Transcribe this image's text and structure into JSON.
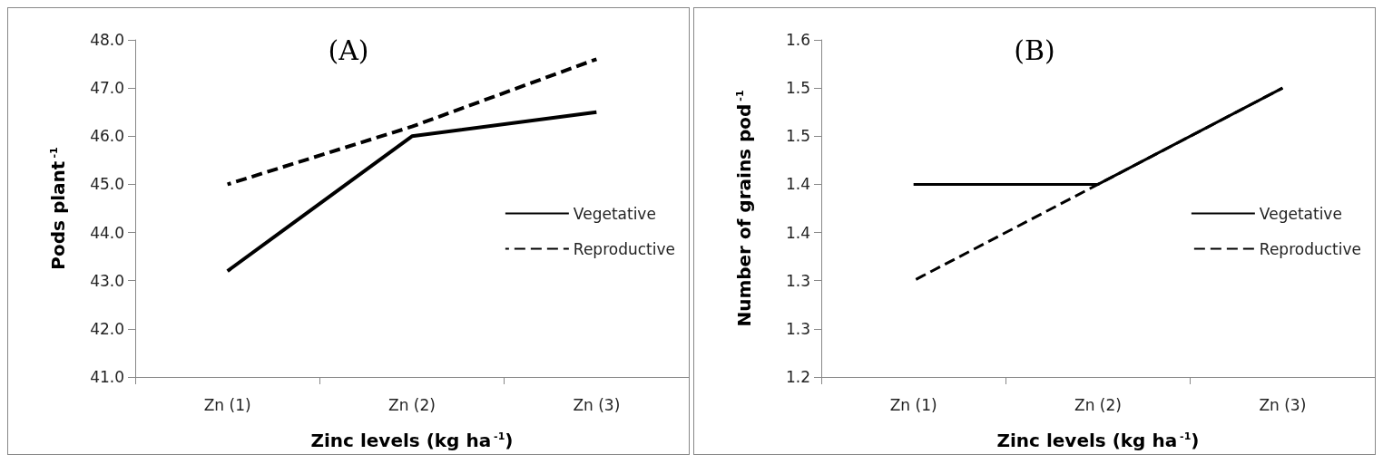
{
  "chart_data": [
    {
      "type": "line",
      "title": "(A)",
      "xlabel": "Zinc levels (kg ha$^{-1}$)",
      "ylabel": "Pods plant$^{-1}$",
      "categories": [
        "Zn (1)",
        "Zn (2)",
        "Zn (3)"
      ],
      "series": [
        {
          "name": "Vegetative",
          "color": "#000000",
          "line_style": "solid",
          "values": [
            43.2,
            46.0,
            46.5
          ]
        },
        {
          "name": "Reproductive",
          "color": "#000000",
          "line_style": "dashed",
          "values": [
            45.0,
            46.2,
            47.6
          ]
        }
      ],
      "ylim": [
        41,
        48
      ],
      "yticks": [
        {
          "value": 41,
          "label": "41.0"
        },
        {
          "value": 42,
          "label": "42.0"
        },
        {
          "value": 43,
          "label": "43.0"
        },
        {
          "value": 44,
          "label": "44.0"
        },
        {
          "value": 45,
          "label": "45.0"
        },
        {
          "value": 46,
          "label": "46.0"
        },
        {
          "value": 47,
          "label": "47.0"
        },
        {
          "value": 48,
          "label": "48.0"
        }
      ],
      "grid": false,
      "legend": "right",
      "marker": "none"
    },
    {
      "type": "line",
      "title": "(B)",
      "xlabel": "Zinc levels (kg ha$^{-1}$)",
      "ylabel": "Number of grains pod$^{-1}$",
      "categories": [
        "Zn (1)",
        "Zn (2)",
        "Zn (3)"
      ],
      "series": [
        {
          "name": "Vegetative",
          "color": "#000000",
          "line_style": "solid",
          "values": [
            1.4,
            1.4,
            1.5
          ]
        },
        {
          "name": "Reproductive",
          "color": "#000000",
          "line_style": "dashed",
          "values": [
            1.3,
            1.4,
            1.5
          ]
        }
      ],
      "ylim": [
        1.2,
        1.55
      ],
      "yticks": [
        {
          "value": 1.2,
          "label": "1.2"
        },
        {
          "value": 1.25,
          "label": "1.3"
        },
        {
          "value": 1.3,
          "label": "1.3"
        },
        {
          "value": 1.35,
          "label": "1.4"
        },
        {
          "value": 1.4,
          "label": "1.4"
        },
        {
          "value": 1.45,
          "label": "1.5"
        },
        {
          "value": 1.5,
          "label": "1.5"
        },
        {
          "value": 1.55,
          "label": "1.6"
        }
      ],
      "grid": false,
      "legend": "right",
      "marker": "none"
    }
  ]
}
